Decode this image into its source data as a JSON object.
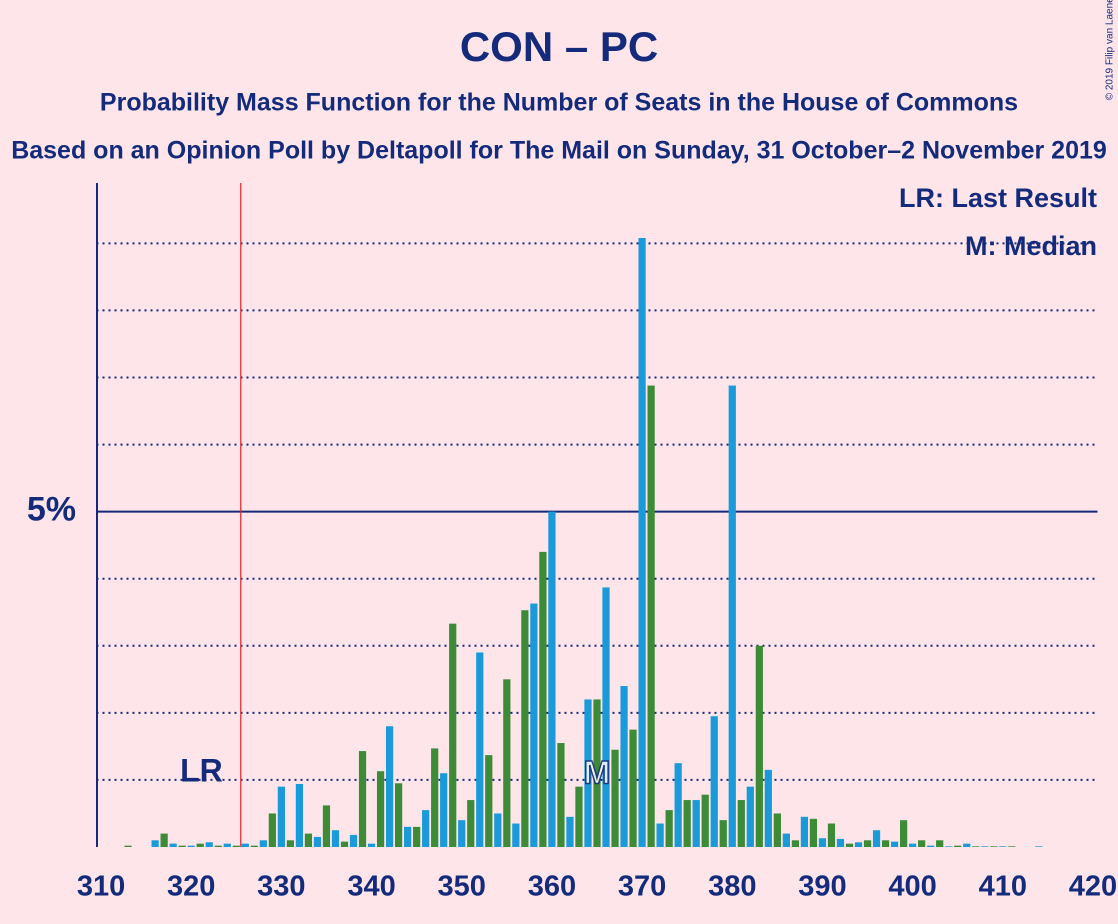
{
  "chart_data": {
    "type": "bar",
    "title": "CON – PC",
    "subtitle": "Probability Mass Function for the Number of Seats in the House of Commons",
    "caption": "Based on an Opinion Poll by Deltapoll for The Mail on Sunday, 31 October–2 November 2019",
    "copyright": "© 2019 Filip van Laenen",
    "legend": [
      "LR: Last Result",
      "M: Median"
    ],
    "last_result": {
      "seat": 326,
      "label": "LR"
    },
    "median": {
      "seat": 365,
      "label": "M"
    },
    "colors": [
      "#1a9ad9",
      "#3d8b37"
    ],
    "x": [
      310,
      311,
      312,
      313,
      314,
      315,
      316,
      317,
      318,
      319,
      320,
      321,
      322,
      323,
      324,
      325,
      326,
      327,
      328,
      329,
      330,
      331,
      332,
      333,
      334,
      335,
      336,
      337,
      338,
      339,
      340,
      341,
      342,
      343,
      344,
      345,
      346,
      347,
      348,
      349,
      350,
      351,
      352,
      353,
      354,
      355,
      356,
      357,
      358,
      359,
      360,
      361,
      362,
      363,
      364,
      365,
      366,
      367,
      368,
      369,
      370,
      371,
      372,
      373,
      374,
      375,
      376,
      377,
      378,
      379,
      380,
      381,
      382,
      383,
      384,
      385,
      386,
      387,
      388,
      389,
      390,
      391,
      392,
      393,
      394,
      395,
      396,
      397,
      398,
      399,
      400,
      401,
      402,
      403,
      404,
      405,
      406,
      407,
      408,
      409,
      410,
      411,
      412,
      413,
      414,
      415,
      416,
      417,
      418,
      419,
      420
    ],
    "values": [
      0,
      0,
      0,
      0.02,
      0,
      0,
      0.1,
      0.2,
      0.05,
      0.02,
      0.02,
      0.05,
      0.07,
      0.02,
      0.05,
      0.02,
      0.05,
      0.02,
      0.1,
      0.5,
      0.9,
      0.1,
      0.94,
      0.2,
      0.15,
      0.62,
      0.25,
      0.08,
      0.18,
      1.43,
      0.05,
      1.13,
      1.8,
      0.95,
      0.3,
      0.3,
      0.55,
      1.47,
      1.1,
      3.33,
      0.4,
      0.7,
      2.9,
      1.37,
      0.5,
      2.5,
      0.35,
      3.53,
      3.63,
      4.4,
      5.0,
      1.55,
      0.45,
      0.9,
      2.2,
      2.2,
      3.87,
      1.45,
      2.4,
      1.75,
      9.08,
      6.88,
      0.35,
      0.55,
      1.25,
      0.7,
      0.7,
      0.78,
      1.95,
      0.4,
      6.88,
      0.7,
      0.9,
      3.0,
      1.15,
      0.5,
      0.2,
      0.1,
      0.45,
      0.42,
      0.13,
      0.35,
      0.12,
      0.05,
      0.07,
      0.1,
      0.25,
      0.1,
      0.08,
      0.4,
      0.05,
      0.1,
      0.02,
      0.1,
      0.01,
      0.02,
      0.05,
      0.01,
      0.01,
      0.01,
      0.01,
      0.01,
      0,
      0,
      0.01,
      0,
      0,
      0,
      0,
      0,
      0
    ],
    "xlim": [
      309.5,
      420.5
    ],
    "xticks": [
      310,
      320,
      330,
      340,
      350,
      360,
      370,
      380,
      390,
      400,
      410,
      420
    ],
    "ylim": [
      0,
      9.9
    ],
    "yticks": [
      {
        "value": 5,
        "label": "5%"
      }
    ],
    "grid_yticks": [
      1,
      2,
      3,
      4,
      6,
      7,
      8,
      9
    ]
  }
}
